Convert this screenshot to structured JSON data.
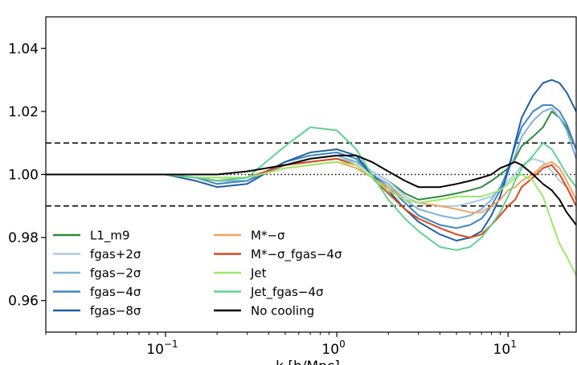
{
  "chart_data": {
    "type": "line",
    "xscale": "log",
    "xlim": [
      0.02,
      25
    ],
    "ylim": [
      0.95,
      1.05
    ],
    "xlabel": "k [h/Mpc]",
    "ylabel": "",
    "title": "",
    "grid": false,
    "legend": "lower-left, two columns",
    "x_ticks": [
      {
        "value": 0.1,
        "base": "10",
        "exp": "−1"
      },
      {
        "value": 1,
        "base": "10",
        "exp": "0"
      },
      {
        "value": 10,
        "base": "10",
        "exp": "1"
      }
    ],
    "y_ticks": [
      {
        "value": 0.96,
        "label": "0.96"
      },
      {
        "value": 0.98,
        "label": "0.98"
      },
      {
        "value": 1.0,
        "label": "1.00"
      },
      {
        "value": 1.02,
        "label": "1.02"
      },
      {
        "value": 1.04,
        "label": "1.04"
      }
    ],
    "reference_lines": [
      {
        "y": 1.01,
        "style": "dashed"
      },
      {
        "y": 0.99,
        "style": "dashed"
      },
      {
        "y": 1.0,
        "style": "dotted"
      }
    ],
    "series": [
      {
        "name": "L1_m9",
        "color": "#2e8b3a",
        "x": [
          0.02,
          0.1,
          0.15,
          0.2,
          0.3,
          0.5,
          0.7,
          1.0,
          1.3,
          1.6,
          2.0,
          2.5,
          3.0,
          4.0,
          5.0,
          6.0,
          7.0,
          8.0,
          9.0,
          10.0,
          11.0,
          12.0,
          14.0,
          16.0,
          18.0,
          20.0,
          22.0,
          25.0
        ],
        "y": [
          1.0,
          1.0,
          0.999,
          0.998,
          0.999,
          1.003,
          1.004,
          1.005,
          1.004,
          1.001,
          0.998,
          0.994,
          0.992,
          0.993,
          0.994,
          0.995,
          0.996,
          0.998,
          1.0,
          1.002,
          1.005,
          1.009,
          1.012,
          1.015,
          1.02,
          1.018,
          1.015,
          1.008
        ]
      },
      {
        "name": "fgas+2σ",
        "color": "#a9cce3",
        "x": [
          0.02,
          0.1,
          0.15,
          0.2,
          0.3,
          0.5,
          0.7,
          1.0,
          1.3,
          1.6,
          2.0,
          2.5,
          3.0,
          4.0,
          5.0,
          6.0,
          7.0,
          8.0,
          9.0,
          10.0,
          11.0,
          12.0,
          14.0,
          16.0,
          18.0,
          20.0,
          22.0,
          25.0
        ],
        "y": [
          1.0,
          1.0,
          0.999,
          0.998,
          0.999,
          1.003,
          1.004,
          1.005,
          1.004,
          1.001,
          0.998,
          0.993,
          0.991,
          0.99,
          0.99,
          0.991,
          0.992,
          0.993,
          0.995,
          0.998,
          1.0,
          1.003,
          1.005,
          1.004,
          1.001,
          0.998,
          0.996,
          0.99
        ]
      },
      {
        "name": "fgas−2σ",
        "color": "#7fb3d5",
        "x": [
          0.02,
          0.1,
          0.15,
          0.2,
          0.3,
          0.5,
          0.7,
          1.0,
          1.3,
          1.6,
          2.0,
          2.5,
          3.0,
          4.0,
          5.0,
          6.0,
          7.0,
          8.0,
          9.0,
          10.0,
          11.0,
          12.0,
          14.0,
          16.0,
          18.0,
          20.0,
          22.0,
          25.0
        ],
        "y": [
          1.0,
          1.0,
          0.999,
          0.998,
          0.998,
          1.003,
          1.005,
          1.006,
          1.004,
          1.0,
          0.997,
          0.992,
          0.989,
          0.987,
          0.986,
          0.987,
          0.989,
          0.992,
          0.996,
          1.001,
          1.006,
          1.012,
          1.017,
          1.02,
          1.021,
          1.018,
          1.014,
          1.005
        ]
      },
      {
        "name": "fgas−4σ",
        "color": "#3d85c6",
        "x": [
          0.02,
          0.1,
          0.15,
          0.2,
          0.3,
          0.5,
          0.7,
          1.0,
          1.3,
          1.6,
          2.0,
          2.5,
          3.0,
          4.0,
          5.0,
          6.0,
          7.0,
          8.0,
          9.0,
          10.0,
          11.0,
          12.0,
          14.0,
          16.0,
          18.0,
          20.0,
          22.0,
          25.0
        ],
        "y": [
          1.0,
          1.0,
          0.999,
          0.997,
          0.998,
          1.004,
          1.006,
          1.007,
          1.005,
          1.0,
          0.996,
          0.991,
          0.987,
          0.984,
          0.983,
          0.984,
          0.986,
          0.99,
          0.995,
          1.002,
          1.009,
          1.015,
          1.02,
          1.022,
          1.022,
          1.02,
          1.016,
          1.008
        ]
      },
      {
        "name": "fgas−8σ",
        "color": "#1f5fa0",
        "x": [
          0.02,
          0.1,
          0.15,
          0.2,
          0.3,
          0.5,
          0.7,
          1.0,
          1.3,
          1.6,
          2.0,
          2.5,
          3.0,
          4.0,
          5.0,
          6.0,
          7.0,
          8.0,
          9.0,
          10.0,
          11.0,
          12.0,
          14.0,
          16.0,
          18.0,
          20.0,
          22.0,
          25.0
        ],
        "y": [
          1.0,
          1.0,
          0.998,
          0.996,
          0.997,
          1.004,
          1.007,
          1.008,
          1.006,
          1.0,
          0.995,
          0.989,
          0.985,
          0.981,
          0.979,
          0.98,
          0.982,
          0.987,
          0.993,
          1.001,
          1.01,
          1.018,
          1.025,
          1.029,
          1.03,
          1.029,
          1.026,
          1.02
        ]
      },
      {
        "name": "M*−σ",
        "color": "#f5a25d",
        "x": [
          0.02,
          0.1,
          0.15,
          0.2,
          0.3,
          0.5,
          0.7,
          1.0,
          1.3,
          1.6,
          2.0,
          2.5,
          3.0,
          4.0,
          5.0,
          6.0,
          7.0,
          8.0,
          9.0,
          10.0,
          11.0,
          12.0,
          14.0,
          16.0,
          18.0,
          20.0,
          22.0,
          25.0
        ],
        "y": [
          1.0,
          1.0,
          0.999,
          0.999,
          0.999,
          1.002,
          1.003,
          1.004,
          1.002,
          0.999,
          0.996,
          0.992,
          0.991,
          0.99,
          0.989,
          0.988,
          0.988,
          0.99,
          0.992,
          0.995,
          0.996,
          0.998,
          1.0,
          1.003,
          1.004,
          1.002,
          0.998,
          0.992
        ]
      },
      {
        "name": "M*−σ_fgas−4σ",
        "color": "#d9481f",
        "x": [
          0.02,
          0.1,
          0.15,
          0.2,
          0.3,
          0.5,
          0.7,
          1.0,
          1.3,
          1.6,
          2.0,
          2.5,
          3.0,
          4.0,
          5.0,
          6.0,
          7.0,
          8.0,
          9.0,
          10.0,
          11.0,
          12.0,
          14.0,
          16.0,
          18.0,
          20.0,
          22.0,
          25.0
        ],
        "y": [
          1.0,
          1.0,
          0.999,
          0.998,
          0.999,
          1.003,
          1.004,
          1.005,
          1.003,
          0.999,
          0.994,
          0.989,
          0.986,
          0.983,
          0.981,
          0.98,
          0.981,
          0.984,
          0.987,
          0.99,
          0.992,
          0.996,
          0.999,
          1.002,
          1.003,
          1.0,
          0.996,
          0.99
        ]
      },
      {
        "name": "Jet",
        "color": "#9be86a",
        "x": [
          0.02,
          0.1,
          0.15,
          0.2,
          0.3,
          0.5,
          0.7,
          1.0,
          1.3,
          1.6,
          2.0,
          2.5,
          3.0,
          4.0,
          5.0,
          6.0,
          7.0,
          8.0,
          9.0,
          10.0,
          11.0,
          12.0,
          14.0,
          16.0,
          18.0,
          20.0,
          22.0,
          25.0
        ],
        "y": [
          1.0,
          1.0,
          0.999,
          0.999,
          0.999,
          1.002,
          1.003,
          1.004,
          1.003,
          0.999,
          0.995,
          0.992,
          0.991,
          0.992,
          0.993,
          0.993,
          0.993,
          0.994,
          0.995,
          0.997,
          0.999,
          1.0,
          0.998,
          0.993,
          0.985,
          0.978,
          0.974,
          0.968
        ]
      },
      {
        "name": "Jet_fgas−4σ",
        "color": "#5fd38f",
        "x": [
          0.02,
          0.1,
          0.15,
          0.2,
          0.3,
          0.5,
          0.7,
          1.0,
          1.3,
          1.6,
          2.0,
          2.5,
          3.0,
          4.0,
          5.0,
          6.0,
          7.0,
          8.0,
          9.0,
          10.0,
          11.0,
          12.0,
          14.0,
          16.0,
          18.0,
          20.0,
          22.0,
          25.0
        ],
        "y": [
          1.0,
          1.0,
          0.999,
          0.998,
          0.999,
          1.009,
          1.015,
          1.014,
          1.008,
          1.0,
          0.992,
          0.986,
          0.982,
          0.977,
          0.976,
          0.977,
          0.98,
          0.984,
          0.988,
          0.993,
          0.998,
          1.002,
          1.006,
          1.01,
          1.008,
          1.004,
          1.0,
          0.996
        ]
      },
      {
        "name": "No cooling",
        "color": "#000000",
        "x": [
          0.02,
          0.1,
          0.15,
          0.2,
          0.3,
          0.5,
          0.7,
          1.0,
          1.3,
          1.6,
          2.0,
          2.5,
          3.0,
          4.0,
          5.0,
          6.0,
          7.0,
          8.0,
          9.0,
          10.0,
          11.0,
          12.0,
          14.0,
          16.0,
          18.0,
          20.0,
          22.0,
          25.0
        ],
        "y": [
          1.0,
          1.0,
          1.0,
          1.0,
          1.001,
          1.003,
          1.005,
          1.006,
          1.006,
          1.004,
          1.001,
          0.998,
          0.996,
          0.996,
          0.997,
          0.998,
          0.999,
          1.0,
          1.002,
          1.003,
          1.004,
          1.003,
          1.0,
          0.997,
          0.995,
          0.992,
          0.988,
          0.984
        ]
      }
    ]
  }
}
